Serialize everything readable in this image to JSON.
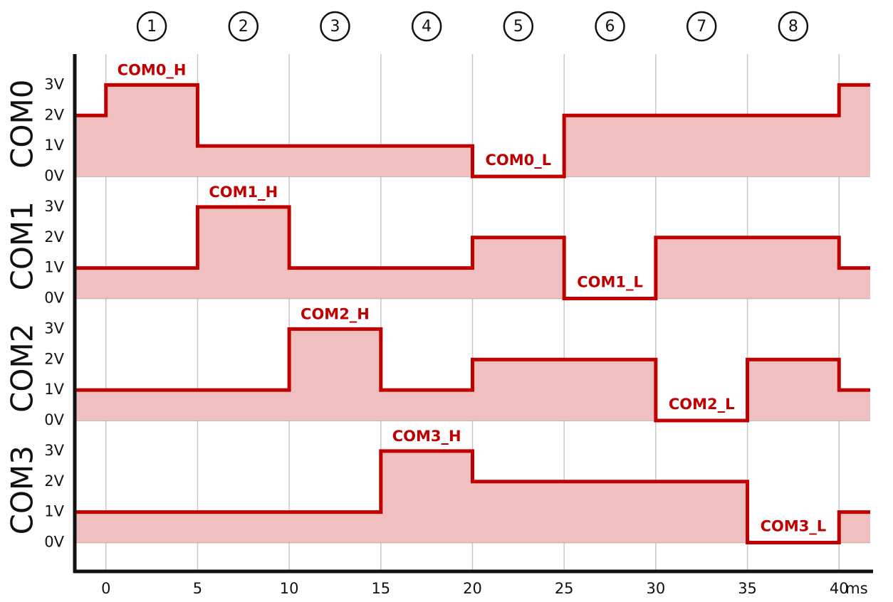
{
  "chart_data": {
    "type": "step",
    "x_label": "ms",
    "xlim": [
      -1.7,
      41.7
    ],
    "xticks": [
      0,
      5,
      10,
      15,
      20,
      25,
      30,
      35,
      40
    ],
    "ylim": [
      0,
      4
    ],
    "yticks": [
      {
        "value": 0,
        "label": "0V"
      },
      {
        "value": 1,
        "label": "1V"
      },
      {
        "value": 2,
        "label": "2V"
      },
      {
        "value": 3,
        "label": "3V"
      }
    ],
    "grid": true,
    "period_labels": [
      "1",
      "2",
      "3",
      "4",
      "5",
      "6",
      "7",
      "8"
    ],
    "x": [
      -1.7,
      0,
      5,
      10,
      15,
      20,
      25,
      30,
      35,
      40,
      41.7
    ],
    "series": [
      {
        "name": "COM0",
        "color": "#c00000",
        "fill": "#f0c0c0",
        "high_label": "COM0_H",
        "low_label": "COM0_L",
        "values": [
          2,
          3,
          1,
          1,
          1,
          0,
          2,
          2,
          2,
          3,
          3
        ]
      },
      {
        "name": "COM1",
        "color": "#c00000",
        "fill": "#f0c0c0",
        "high_label": "COM1_H",
        "low_label": "COM1_L",
        "values": [
          1,
          1,
          3,
          1,
          1,
          2,
          0,
          2,
          2,
          1,
          1
        ]
      },
      {
        "name": "COM2",
        "color": "#c00000",
        "fill": "#f0c0c0",
        "high_label": "COM2_H",
        "low_label": "COM2_L",
        "values": [
          1,
          1,
          1,
          3,
          1,
          2,
          2,
          0,
          2,
          1,
          1
        ]
      },
      {
        "name": "COM3",
        "color": "#c00000",
        "fill": "#f0c0c0",
        "high_label": "COM3_H",
        "low_label": "COM3_L",
        "values": [
          1,
          1,
          1,
          1,
          3,
          2,
          2,
          2,
          0,
          1,
          1
        ]
      }
    ]
  }
}
